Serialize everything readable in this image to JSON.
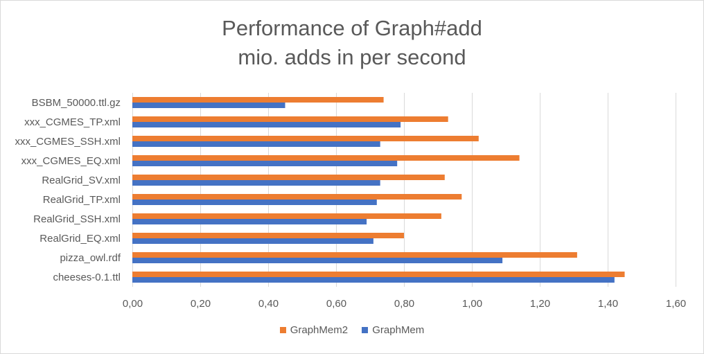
{
  "chart_data": {
    "type": "bar",
    "orientation": "horizontal",
    "title_line1": "Performance of Graph#add",
    "title_line2": "mio. adds in per second",
    "categories": [
      "BSBM_50000.ttl.gz",
      "xxx_CGMES_TP.xml",
      "xxx_CGMES_SSH.xml",
      "xxx_CGMES_EQ.xml",
      "RealGrid_SV.xml",
      "RealGrid_TP.xml",
      "RealGrid_SSH.xml",
      "RealGrid_EQ.xml",
      "pizza_owl.rdf",
      "cheeses-0.1.ttl"
    ],
    "series": [
      {
        "name": "GraphMem2",
        "color": "#ed7d31",
        "values": [
          0.74,
          0.93,
          1.02,
          1.14,
          0.92,
          0.97,
          0.91,
          0.8,
          1.31,
          1.45
        ]
      },
      {
        "name": "GraphMem",
        "color": "#4472c4",
        "values": [
          0.45,
          0.79,
          0.73,
          0.78,
          0.73,
          0.72,
          0.69,
          0.71,
          1.09,
          1.42
        ]
      }
    ],
    "xlim": [
      0,
      1.6
    ],
    "xticks": [
      "0,00",
      "0,20",
      "0,40",
      "0,60",
      "0,80",
      "1,00",
      "1,20",
      "1,40",
      "1,60"
    ],
    "legend": [
      "GraphMem2",
      "GraphMem"
    ],
    "legend_position": "bottom",
    "grid": true
  }
}
